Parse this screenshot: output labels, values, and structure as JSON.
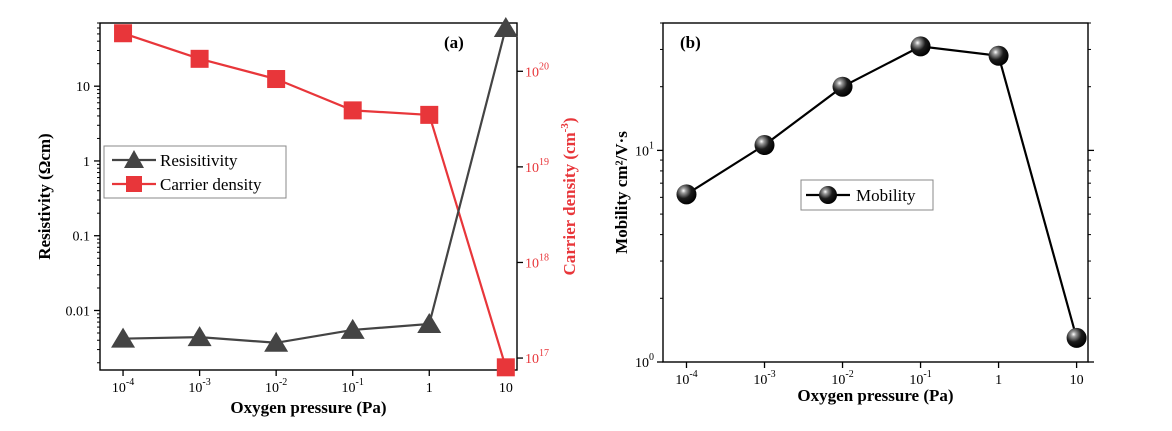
{
  "chart_data": [
    {
      "panel": "(a)",
      "type": "line",
      "xlabel": "Oxygen pressure (Pa)",
      "xscale": "log",
      "xlim": [
        5e-05,
        14
      ],
      "x": [
        0.0001,
        0.001,
        0.01,
        0.1,
        1,
        10
      ],
      "x_tick_labels": [
        {
          "base": "10",
          "exp": "-4"
        },
        {
          "base": "10",
          "exp": "-3"
        },
        {
          "base": "10",
          "exp": "-2"
        },
        {
          "base": "10",
          "exp": "-1"
        },
        {
          "base": "1",
          "exp": ""
        },
        {
          "base": "10",
          "exp": ""
        }
      ],
      "ylabel_left": "Resistivity (Ωcm)",
      "yscale_left": "log",
      "ylim_left": [
        0.0016,
        70
      ],
      "y_left_ticks": [
        {
          "value": 0.01,
          "label": "0.01"
        },
        {
          "value": 0.1,
          "label": "0.1"
        },
        {
          "value": 1,
          "label": "1"
        },
        {
          "value": 10,
          "label": "10"
        }
      ],
      "ylabel_right": "Carrier density (cm",
      "ylabel_right_sup": "-3",
      "ylabel_right_close": ")",
      "yscale_right": "log",
      "ylim_right": [
        7.5e+16,
        3.2e+20
      ],
      "y_right_ticks": [
        {
          "value": 1e+17,
          "base": "10",
          "exp": "17"
        },
        {
          "value": 1e+18,
          "base": "10",
          "exp": "18"
        },
        {
          "value": 1e+19,
          "base": "10",
          "exp": "19"
        },
        {
          "value": 1e+20,
          "base": "10",
          "exp": "20"
        }
      ],
      "series": [
        {
          "name": "Resisitivity",
          "axis": "left",
          "marker": "triangle",
          "color": "#444444",
          "values": [
            0.0042,
            0.0044,
            0.0037,
            0.0055,
            0.0066,
            60
          ]
        },
        {
          "name": "Carrier density",
          "axis": "right",
          "marker": "square",
          "color": "#e8363a",
          "values": [
            2.5e+20,
            1.35e+20,
            8.3e+19,
            3.9e+19,
            3.5e+19,
            8e+16
          ]
        }
      ],
      "legend": "middle-left",
      "grid": false
    },
    {
      "panel": "(b)",
      "type": "line",
      "xlabel": "Oxygen pressure (Pa)",
      "xscale": "log",
      "xlim": [
        5e-05,
        14
      ],
      "x": [
        0.0001,
        0.001,
        0.01,
        0.1,
        1,
        10
      ],
      "x_tick_labels": [
        {
          "base": "10",
          "exp": "-4"
        },
        {
          "base": "10",
          "exp": "-3"
        },
        {
          "base": "10",
          "exp": "-2"
        },
        {
          "base": "10",
          "exp": "-1"
        },
        {
          "base": "1",
          "exp": ""
        },
        {
          "base": "10",
          "exp": ""
        }
      ],
      "ylabel": "Mobility cm²/V·s",
      "yscale": "log",
      "ylim": [
        1,
        40
      ],
      "y_ticks": [
        {
          "value": 1,
          "base": "10",
          "exp": "0"
        },
        {
          "value": 10,
          "base": "10",
          "exp": "1"
        }
      ],
      "series": [
        {
          "name": "Mobility",
          "marker": "sphere",
          "color": "#000000",
          "values": [
            6.2,
            10.6,
            20,
            31,
            28,
            1.3
          ]
        }
      ],
      "legend": "center",
      "grid": false
    }
  ]
}
